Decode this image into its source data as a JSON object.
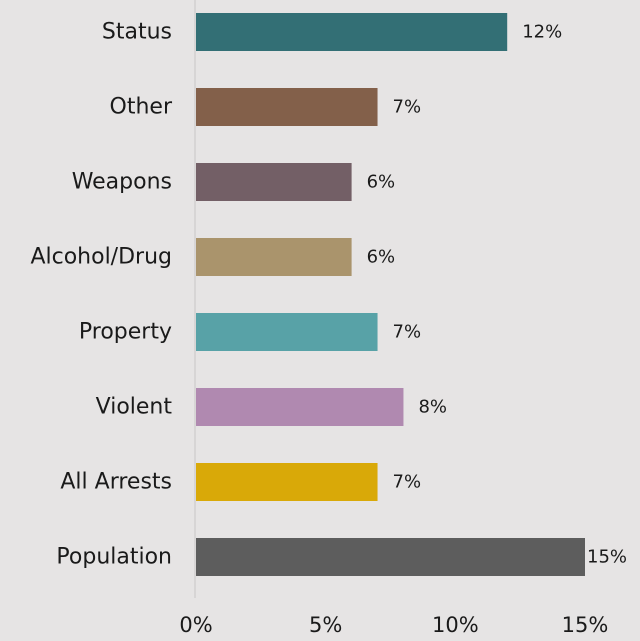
{
  "chart_data": {
    "type": "bar",
    "orientation": "horizontal",
    "title": "",
    "xlabel": "",
    "ylabel": "",
    "categories": [
      "Status",
      "Other",
      "Weapons",
      "Alcohol/Drug",
      "Property",
      "Violent",
      "All Arrests",
      "Population"
    ],
    "values": [
      12,
      7,
      6,
      6,
      7,
      8,
      7,
      15
    ],
    "value_labels": [
      "12%",
      "7%",
      "6%",
      "6%",
      "7%",
      "8%",
      "7%",
      "15%"
    ],
    "colors": [
      "#336f75",
      "#83604a",
      "#735f66",
      "#aa946c",
      "#58a2a7",
      "#b089b0",
      "#d9a908",
      "#5d5d5d"
    ],
    "xlim": [
      0,
      15
    ],
    "xticks": [
      0,
      5,
      10,
      15
    ],
    "xtick_labels": [
      "0%",
      "5%",
      "10%",
      "15%"
    ],
    "grid": false,
    "legend": "none",
    "background": "#e6e4e4",
    "axis_line_color": "#d2d0d0"
  }
}
